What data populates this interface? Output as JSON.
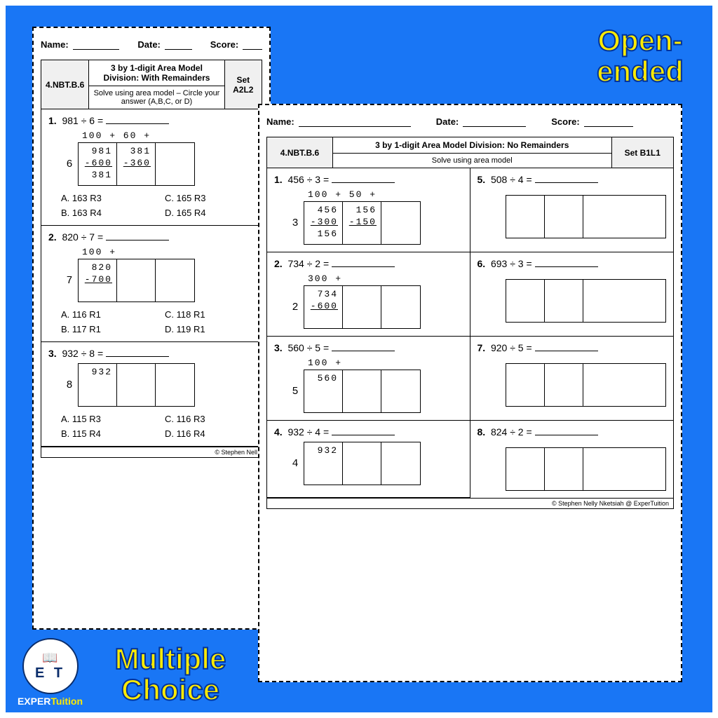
{
  "colors": {
    "bg": "#1976f5",
    "border": "#ffffff",
    "yellow": "#ffeb00",
    "stroke": "#003399"
  },
  "labels": {
    "open": "Open-ended",
    "mc": "Multiple Choice"
  },
  "logo": {
    "brand_a": "EXPER",
    "brand_b": "Tuition",
    "initials": "E T"
  },
  "ws1": {
    "header": {
      "name": "Name:",
      "date": "Date:",
      "score": "Score:"
    },
    "standard": "4.NBT.B.6",
    "title": "3 by 1-digit Area Model Division: With Remainders",
    "subtitle": "Solve using area model – Circle your answer (A,B,C, or D)",
    "set": "Set A2L2",
    "problems": [
      {
        "num": "1.",
        "expr": "981 ÷ 6 =",
        "top": "100 +  60 +",
        "divisor": "6",
        "cells": [
          [
            "981",
            "-600",
            "381"
          ],
          [
            "381",
            "-360",
            ""
          ],
          [
            "",
            "",
            ""
          ]
        ],
        "choices": [
          "A. 163 R3",
          "C. 165 R3",
          "B. 163 R4",
          "D. 165 R4"
        ]
      },
      {
        "num": "2.",
        "expr": "820 ÷ 7 =",
        "top": "100 +",
        "divisor": "7",
        "cells": [
          [
            "820",
            "-700",
            ""
          ],
          [
            "",
            "",
            ""
          ],
          [
            "",
            "",
            ""
          ]
        ],
        "choices": [
          "A. 116 R1",
          "C. 118 R1",
          "B. 117 R1",
          "D. 119 R1"
        ]
      },
      {
        "num": "3.",
        "expr": "932 ÷ 8 =",
        "top": "",
        "divisor": "8",
        "cells": [
          [
            "932",
            "",
            ""
          ],
          [
            "",
            "",
            ""
          ],
          [
            "",
            "",
            ""
          ]
        ],
        "choices": [
          "A. 115 R3",
          "C. 116 R3",
          "B. 115 R4",
          "D. 116 R4"
        ]
      }
    ],
    "copyright": "© Stephen Nell"
  },
  "ws2": {
    "header": {
      "name": "Name:",
      "date": "Date:",
      "score": "Score:"
    },
    "standard": "4.NBT.B.6",
    "title": "3 by 1-digit Area Model Division: No Remainders",
    "subtitle": "Solve using area model",
    "set": "Set B1L1",
    "problems": [
      {
        "num": "1.",
        "expr": "456 ÷ 3 =",
        "top": "100 +  50 +",
        "divisor": "3",
        "cells": [
          [
            "456",
            "-300",
            "156"
          ],
          [
            "156",
            "-150",
            ""
          ],
          [
            "",
            "",
            ""
          ]
        ]
      },
      {
        "num": "5.",
        "expr": "508 ÷ 4 =",
        "empty": true
      },
      {
        "num": "2.",
        "expr": "734 ÷ 2 =",
        "top": "300 +",
        "divisor": "2",
        "cells": [
          [
            "734",
            "-600",
            ""
          ],
          [
            "",
            "",
            ""
          ],
          [
            "",
            "",
            ""
          ]
        ]
      },
      {
        "num": "6.",
        "expr": "693 ÷ 3 =",
        "empty": true
      },
      {
        "num": "3.",
        "expr": "560 ÷ 5 =",
        "top": "100 +",
        "divisor": "5",
        "cells": [
          [
            "560",
            "",
            ""
          ],
          [
            "",
            "",
            ""
          ],
          [
            "",
            "",
            ""
          ]
        ]
      },
      {
        "num": "7.",
        "expr": "920 ÷ 5 =",
        "empty": true
      },
      {
        "num": "4.",
        "expr": "932 ÷ 4 =",
        "top": "",
        "divisor": "4",
        "cells": [
          [
            "932",
            "",
            ""
          ],
          [
            "",
            "",
            ""
          ],
          [
            "",
            "",
            ""
          ]
        ]
      },
      {
        "num": "8.",
        "expr": "824 ÷ 2 =",
        "empty": true
      }
    ],
    "copyright": "© Stephen Nelly Nketsiah @ ExperTuition"
  }
}
